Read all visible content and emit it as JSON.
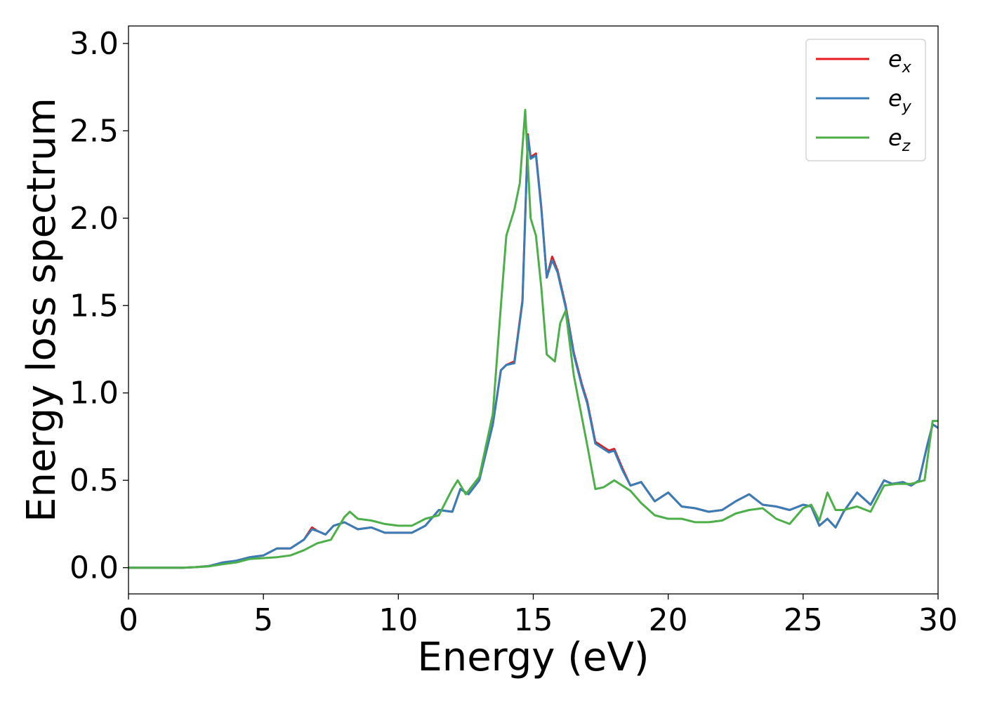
{
  "chart_data": {
    "type": "line",
    "title": "",
    "xlabel": "Energy (eV)",
    "ylabel": "Energy loss spectrum",
    "xlim": [
      0,
      30
    ],
    "ylim": [
      -0.15,
      3.1
    ],
    "xticks": [
      0,
      5,
      10,
      15,
      20,
      25,
      30
    ],
    "yticks": [
      0.0,
      0.5,
      1.0,
      1.5,
      2.0,
      2.5,
      3.0
    ],
    "xtick_labels": [
      "0",
      "5",
      "10",
      "15",
      "20",
      "25",
      "30"
    ],
    "ytick_labels": [
      "0.0",
      "0.5",
      "1.0",
      "1.5",
      "2.0",
      "2.5",
      "3.0"
    ],
    "grid": false,
    "legend_position": "top-right",
    "series": [
      {
        "name": "e_x",
        "label_base": "e",
        "label_sub": "x",
        "color": "#e41a1c",
        "x": [
          0,
          1,
          2,
          2.5,
          3,
          3.5,
          4,
          4.5,
          5,
          5.5,
          6,
          6.5,
          6.8,
          7,
          7.3,
          7.6,
          8,
          8.5,
          9,
          9.5,
          10,
          10.5,
          11,
          11.5,
          12,
          12.3,
          12.6,
          13,
          13.5,
          13.8,
          14,
          14.3,
          14.6,
          14.8,
          14.9,
          15.1,
          15.3,
          15.5,
          15.7,
          15.9,
          16.2,
          16.5,
          16.8,
          17,
          17.3,
          17.8,
          18,
          18.3,
          18.6,
          19,
          19.5,
          20,
          20.5,
          21,
          21.5,
          22,
          22.5,
          23,
          23.5,
          24,
          24.5,
          25,
          25.3,
          25.6,
          25.9,
          26.2,
          26.5,
          27,
          27.5,
          28,
          28.3,
          28.7,
          29,
          29.3,
          29.6,
          29.8,
          30
        ],
        "y": [
          0,
          0,
          0,
          0.003,
          0.01,
          0.03,
          0.04,
          0.06,
          0.07,
          0.11,
          0.11,
          0.16,
          0.23,
          0.21,
          0.19,
          0.24,
          0.26,
          0.22,
          0.23,
          0.2,
          0.2,
          0.2,
          0.24,
          0.33,
          0.32,
          0.45,
          0.42,
          0.5,
          0.82,
          1.13,
          1.16,
          1.18,
          1.53,
          2.48,
          2.35,
          2.37,
          2.06,
          1.66,
          1.78,
          1.7,
          1.5,
          1.23,
          1.05,
          0.95,
          0.72,
          0.67,
          0.68,
          0.57,
          0.47,
          0.49,
          0.38,
          0.43,
          0.35,
          0.34,
          0.32,
          0.33,
          0.38,
          0.42,
          0.36,
          0.35,
          0.33,
          0.36,
          0.35,
          0.24,
          0.28,
          0.23,
          0.32,
          0.43,
          0.36,
          0.5,
          0.48,
          0.49,
          0.47,
          0.5,
          0.7,
          0.82,
          0.8
        ]
      },
      {
        "name": "e_y",
        "label_base": "e",
        "label_sub": "y",
        "color": "#377eb8",
        "x": [
          0,
          1,
          2,
          2.5,
          3,
          3.5,
          4,
          4.5,
          5,
          5.5,
          6,
          6.5,
          6.8,
          7,
          7.3,
          7.6,
          8,
          8.5,
          9,
          9.5,
          10,
          10.5,
          11,
          11.5,
          12,
          12.3,
          12.6,
          13,
          13.5,
          13.8,
          14,
          14.3,
          14.6,
          14.8,
          14.9,
          15.1,
          15.3,
          15.5,
          15.7,
          15.9,
          16.2,
          16.5,
          16.8,
          17,
          17.3,
          17.8,
          18,
          18.3,
          18.6,
          19,
          19.5,
          20,
          20.5,
          21,
          21.5,
          22,
          22.5,
          23,
          23.5,
          24,
          24.5,
          25,
          25.3,
          25.6,
          25.9,
          26.2,
          26.5,
          27,
          27.5,
          28,
          28.3,
          28.7,
          29,
          29.3,
          29.6,
          29.8,
          30
        ],
        "y": [
          0,
          0,
          0,
          0.003,
          0.01,
          0.03,
          0.04,
          0.06,
          0.07,
          0.11,
          0.11,
          0.16,
          0.22,
          0.21,
          0.19,
          0.24,
          0.26,
          0.22,
          0.23,
          0.2,
          0.2,
          0.2,
          0.24,
          0.33,
          0.32,
          0.45,
          0.42,
          0.5,
          0.82,
          1.13,
          1.16,
          1.17,
          1.52,
          2.47,
          2.34,
          2.36,
          2.05,
          1.66,
          1.76,
          1.69,
          1.49,
          1.22,
          1.04,
          0.94,
          0.71,
          0.66,
          0.67,
          0.56,
          0.47,
          0.49,
          0.38,
          0.43,
          0.35,
          0.34,
          0.32,
          0.33,
          0.38,
          0.42,
          0.36,
          0.35,
          0.33,
          0.36,
          0.35,
          0.24,
          0.28,
          0.23,
          0.32,
          0.43,
          0.36,
          0.5,
          0.48,
          0.49,
          0.47,
          0.5,
          0.7,
          0.82,
          0.8
        ]
      },
      {
        "name": "e_z",
        "label_base": "e",
        "label_sub": "z",
        "color": "#4daf4a",
        "x": [
          0,
          1,
          2,
          2.5,
          3,
          3.5,
          4,
          4.5,
          5,
          5.5,
          6,
          6.5,
          7,
          7.5,
          8,
          8.2,
          8.5,
          9,
          9.5,
          10,
          10.5,
          11,
          11.5,
          12,
          12.2,
          12.5,
          13,
          13.5,
          13.8,
          14,
          14.3,
          14.5,
          14.7,
          14.9,
          15.1,
          15.3,
          15.5,
          15.8,
          16,
          16.2,
          16.5,
          17,
          17.3,
          17.6,
          18,
          18.3,
          18.6,
          19,
          19.5,
          20,
          20.5,
          21,
          21.5,
          22,
          22.5,
          23,
          23.5,
          24,
          24.5,
          25,
          25.3,
          25.6,
          25.9,
          26.2,
          26.5,
          27,
          27.5,
          28,
          28.5,
          29,
          29.5,
          29.8,
          30
        ],
        "y": [
          0,
          0,
          0,
          0.003,
          0.008,
          0.02,
          0.03,
          0.05,
          0.055,
          0.06,
          0.07,
          0.1,
          0.14,
          0.16,
          0.29,
          0.32,
          0.28,
          0.27,
          0.25,
          0.24,
          0.24,
          0.28,
          0.3,
          0.45,
          0.5,
          0.42,
          0.52,
          0.88,
          1.5,
          1.9,
          2.05,
          2.2,
          2.62,
          2.0,
          1.9,
          1.6,
          1.22,
          1.18,
          1.4,
          1.47,
          1.1,
          0.7,
          0.45,
          0.46,
          0.5,
          0.47,
          0.44,
          0.37,
          0.3,
          0.28,
          0.28,
          0.26,
          0.26,
          0.27,
          0.31,
          0.33,
          0.34,
          0.28,
          0.25,
          0.34,
          0.36,
          0.27,
          0.43,
          0.33,
          0.33,
          0.35,
          0.32,
          0.47,
          0.48,
          0.48,
          0.5,
          0.84,
          0.84
        ]
      }
    ]
  }
}
